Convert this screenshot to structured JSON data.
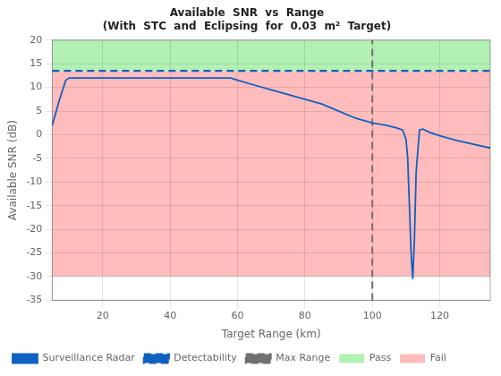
{
  "chart_data": {
    "type": "line",
    "title": "Available  SNR  vs  Range",
    "subtitle": "(With  STC  and  Eclipsing  for  0.03  m²  Target)",
    "xlabel": "Target Range (km)",
    "ylabel": "Available SNR (dB)",
    "xlim": [
      5,
      135
    ],
    "ylim": [
      -35,
      20
    ],
    "xticks": [
      20,
      40,
      60,
      80,
      100,
      120
    ],
    "yticks": [
      -35,
      -30,
      -25,
      -20,
      -15,
      -10,
      -5,
      0,
      5,
      10,
      15,
      20
    ],
    "grid": true,
    "legend": "lower left",
    "x": [
      5,
      7,
      9,
      10,
      15,
      20,
      30,
      40,
      50,
      58,
      60,
      65,
      70,
      75,
      80,
      85,
      90,
      95,
      100,
      104,
      107,
      109,
      110,
      110.5,
      111,
      111.5,
      112,
      112.5,
      113,
      114,
      115,
      117,
      120,
      125,
      130,
      135
    ],
    "series": [
      {
        "name": "Surveillance Radar",
        "color": "#1060C0",
        "line_style": "solid",
        "values": [
          2.0,
          7.0,
          11.5,
          12.0,
          12.0,
          12.0,
          12.0,
          12.0,
          12.0,
          12.0,
          11.5,
          10.5,
          9.5,
          8.5,
          7.5,
          6.5,
          5.0,
          3.5,
          2.5,
          2.0,
          1.5,
          1.0,
          -1.0,
          -5.0,
          -15.0,
          -25.0,
          -30.5,
          -22.0,
          -8.0,
          1.0,
          1.2,
          0.5,
          -0.2,
          -1.2,
          -2.0,
          -2.8
        ]
      }
    ],
    "hlines": [
      {
        "name": "Detectability",
        "value": 13.5,
        "color": "#1060C0",
        "line_style": "dashed"
      }
    ],
    "vlines": [
      {
        "name": "Max Range",
        "value": 100,
        "color": "#707070",
        "line_style": "dashed"
      }
    ],
    "regions": [
      {
        "name": "Pass",
        "from": 13.5,
        "to": 20,
        "color": "#b3f0b3"
      },
      {
        "name": "Fail",
        "from": -30,
        "to": 13.5,
        "color": "#ffbcbc"
      }
    ]
  }
}
